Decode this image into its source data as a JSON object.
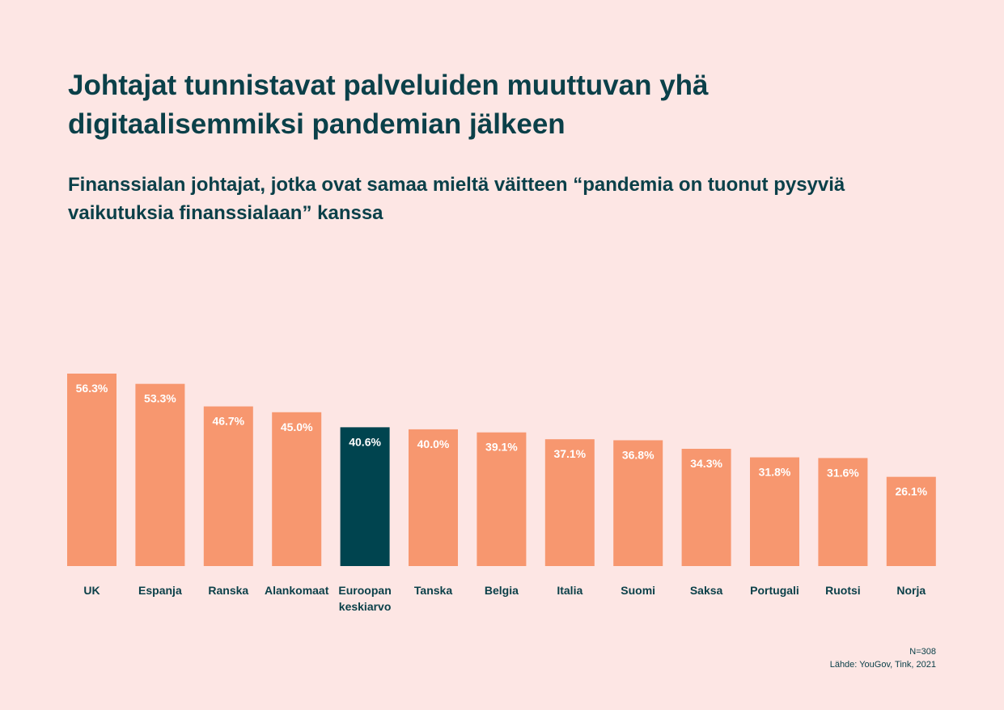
{
  "chart_data": {
    "type": "bar",
    "title": "Johtajat tunnistavat palveluiden muuttuvan yhä digitaalisemmiksi pandemian jälkeen",
    "subtitle": "Finanssialan johtajat, jotka ovat samaa mieltä väitteen “pandemia on tuonut pysyviä vaikutuksia finanssialaan” kanssa",
    "categories": [
      "UK",
      "Espanja",
      "Ranska",
      "Alankomaat",
      "Euroopan keskiarvo",
      "Tanska",
      "Belgia",
      "Italia",
      "Suomi",
      "Saksa",
      "Portugali",
      "Ruotsi",
      "Norja"
    ],
    "values": [
      56.3,
      53.3,
      46.7,
      45.0,
      40.6,
      40.0,
      39.1,
      37.1,
      36.8,
      34.3,
      31.8,
      31.6,
      26.1
    ],
    "value_labels": [
      "56.3%",
      "53.3%",
      "46.7%",
      "45.0%",
      "40.6%",
      "40.0%",
      "39.1%",
      "37.1%",
      "36.8%",
      "34.3%",
      "31.8%",
      "31.6%",
      "26.1%"
    ],
    "highlight_index": 4,
    "ylim": [
      0,
      60
    ],
    "xlabel": "",
    "ylabel": "",
    "grid": false,
    "colors": {
      "bar": "#f7976f",
      "highlight": "#00444f",
      "label": "#ffffff",
      "text": "#0b4049",
      "background": "#fde6e4"
    }
  },
  "footer": {
    "n": "N=308",
    "source": "Lähde: YouGov, Tink, 2021"
  }
}
